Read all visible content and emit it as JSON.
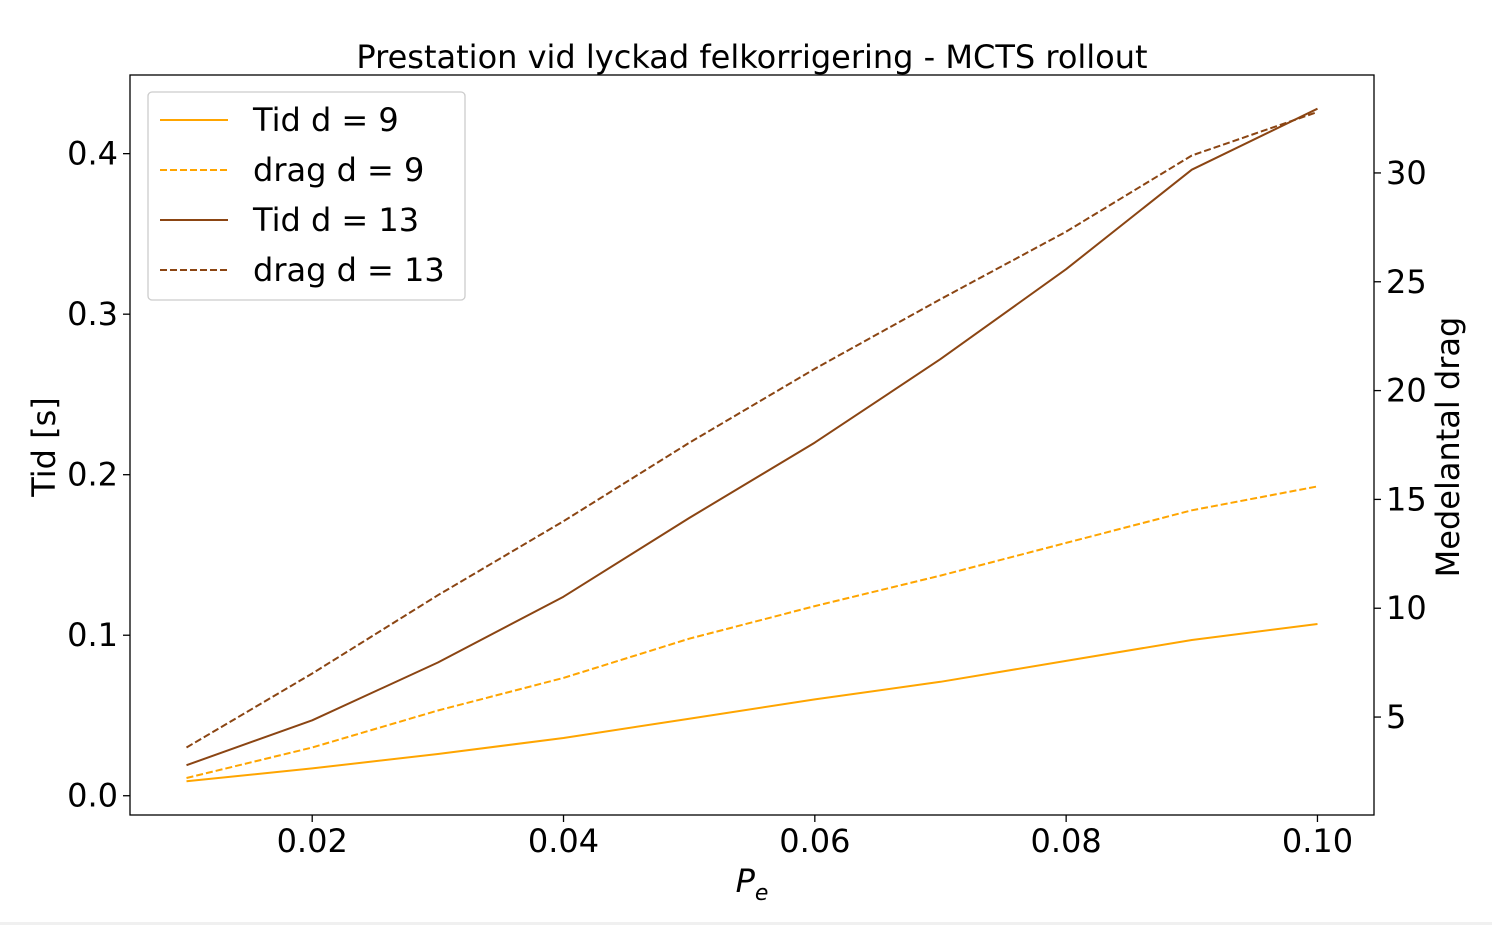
{
  "chart_data": {
    "type": "line",
    "title": "Prestation vid lyckad felkorrigering - MCTS rollout",
    "xlabel_main": "P",
    "xlabel_sub": "e",
    "ylabel_left": "Tid [s]",
    "ylabel_right": "Medelantal drag",
    "xlim": [
      0.0055,
      0.1045
    ],
    "ylim_left": [
      -0.012,
      0.449
    ],
    "ylim_right": [
      0.5,
      34.5
    ],
    "xticks": [
      0.02,
      0.04,
      0.06,
      0.08,
      0.1
    ],
    "xtick_labels": [
      "0.02",
      "0.04",
      "0.06",
      "0.08",
      "0.10"
    ],
    "yticks_left": [
      0.0,
      0.1,
      0.2,
      0.3,
      0.4
    ],
    "ytick_labels_left": [
      "0.0",
      "0.1",
      "0.2",
      "0.3",
      "0.4"
    ],
    "yticks_right": [
      5,
      10,
      15,
      20,
      25,
      30
    ],
    "ytick_labels_right": [
      "5",
      "10",
      "15",
      "20",
      "25",
      "30"
    ],
    "grid": false,
    "legend_position": "upper-left",
    "x": [
      0.01,
      0.02,
      0.03,
      0.04,
      0.05,
      0.06,
      0.07,
      0.08,
      0.09,
      0.1
    ],
    "series": [
      {
        "name": "Tid d = 9",
        "axis": "left",
        "style": "solid",
        "color": "#FFA500",
        "values": [
          0.009,
          0.017,
          0.026,
          0.036,
          0.048,
          0.06,
          0.071,
          0.084,
          0.097,
          0.107
        ]
      },
      {
        "name": "drag d = 9",
        "axis": "right",
        "style": "dashed",
        "color": "#FFA500",
        "values": [
          2.2,
          3.6,
          5.3,
          6.8,
          8.6,
          10.1,
          11.5,
          13.0,
          14.5,
          15.6
        ]
      },
      {
        "name": "Tid d = 13",
        "axis": "left",
        "style": "solid",
        "color": "#8B4513",
        "values": [
          0.019,
          0.047,
          0.083,
          0.124,
          0.173,
          0.22,
          0.272,
          0.328,
          0.39,
          0.428
        ]
      },
      {
        "name": "drag d = 13",
        "axis": "right",
        "style": "dashed",
        "color": "#8B4513",
        "values": [
          3.6,
          7.0,
          10.6,
          14.0,
          17.6,
          21.0,
          24.2,
          27.3,
          30.8,
          32.8
        ]
      }
    ]
  }
}
